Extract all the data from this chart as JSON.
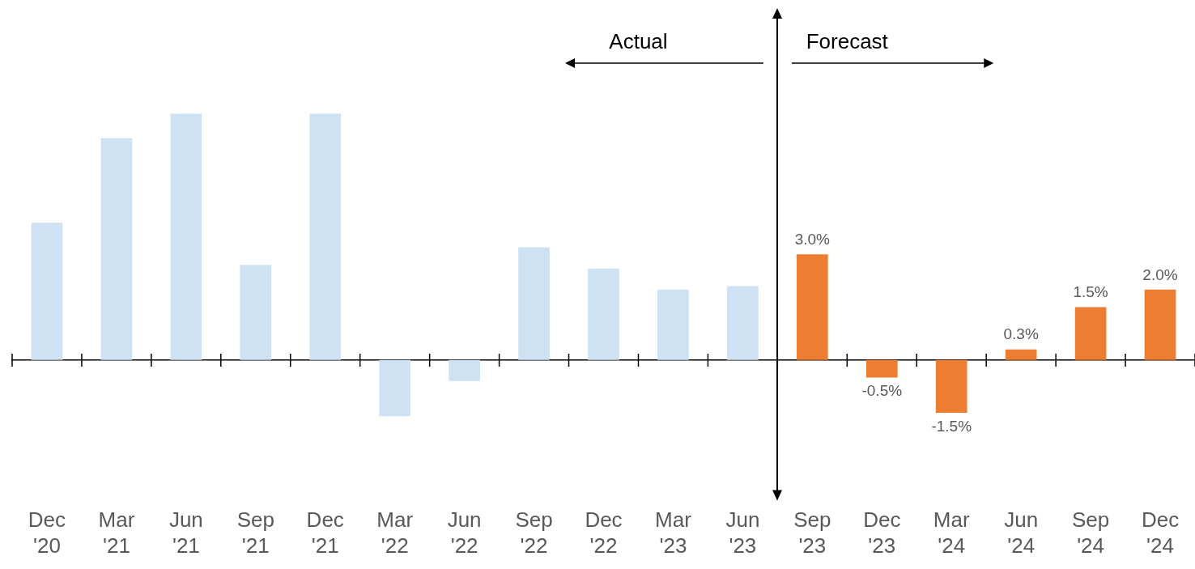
{
  "chart_data": {
    "type": "bar",
    "categories": [
      "Dec '20",
      "Mar '21",
      "Jun '21",
      "Sep '21",
      "Dec '21",
      "Mar '22",
      "Jun '22",
      "Sep '22",
      "Dec '22",
      "Mar '23",
      "Jun '23",
      "Sep '23",
      "Dec '23",
      "Mar '24",
      "Jun '24",
      "Sep '24",
      "Dec '24"
    ],
    "values": [
      3.9,
      6.3,
      7.0,
      2.7,
      7.0,
      -1.6,
      -0.6,
      3.2,
      2.6,
      2.0,
      2.1,
      3.0,
      -0.5,
      -1.5,
      0.3,
      1.5,
      2.0
    ],
    "colors": [
      "#cfe2f3",
      "#cfe2f3",
      "#cfe2f3",
      "#cfe2f3",
      "#cfe2f3",
      "#cfe2f3",
      "#cfe2f3",
      "#cfe2f3",
      "#cfe2f3",
      "#cfe2f3",
      "#cfe2f3",
      "#ed7d31",
      "#ed7d31",
      "#ed7d31",
      "#ed7d31",
      "#ed7d31",
      "#ed7d31"
    ],
    "value_labels": [
      null,
      null,
      null,
      null,
      null,
      null,
      null,
      null,
      null,
      null,
      null,
      "3.0%",
      "-0.5%",
      "-1.5%",
      "0.3%",
      "1.5%",
      "2.0%"
    ],
    "tick_labels": "x",
    "grid": false,
    "legend": false,
    "annotations": [
      "Actual",
      "Forecast"
    ]
  }
}
